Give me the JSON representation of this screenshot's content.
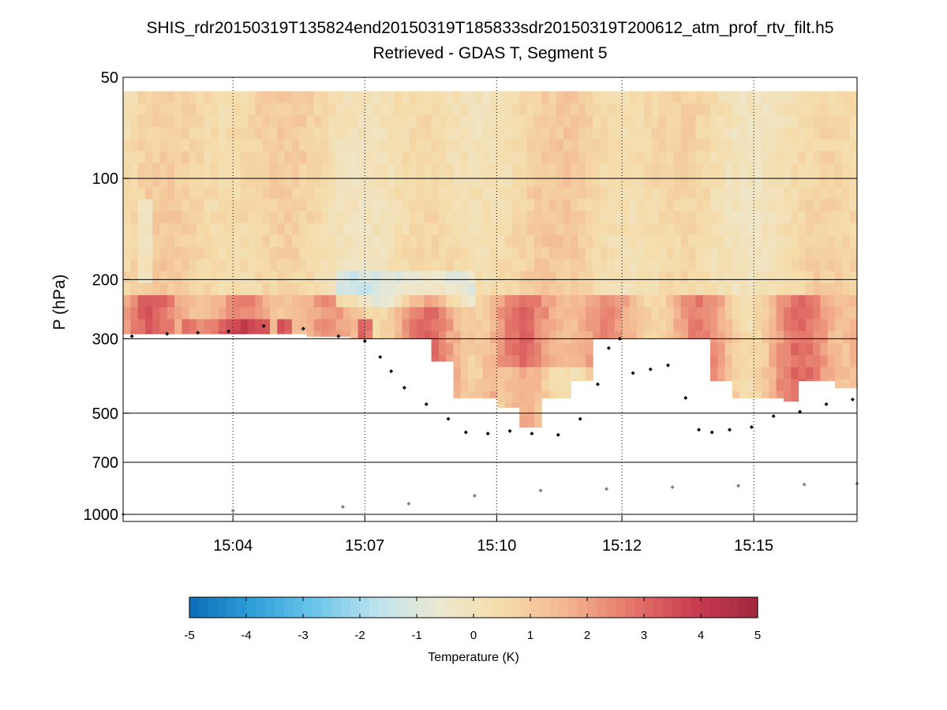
{
  "chart_data": {
    "type": "heatmap",
    "title": "SHIS_rdr20150319T135824end20150319T185833sdr20150319T200612_atm_prof_rtv_filt.h5",
    "subtitle": "Retrieved - GDAS T, Segment 5",
    "xlabel": "",
    "ylabel": "P (hPa)",
    "yscale": "log",
    "yreversed": true,
    "ylim": [
      50,
      1050
    ],
    "yticks": [
      50,
      100,
      200,
      300,
      500,
      700,
      1000
    ],
    "yticklabels": [
      "50",
      "100",
      "200",
      "300",
      "500",
      "700",
      "1000"
    ],
    "xlim_minutes": [
      60.5,
      77.2
    ],
    "xticks_minutes": [
      63.0,
      66.0,
      69.0,
      71.85,
      74.85
    ],
    "xticklabels": [
      "15:04",
      "15:07",
      "15:10",
      "15:12",
      "15:15"
    ],
    "grid": true,
    "colorbar": {
      "label": "Temperature (K)",
      "range": [
        -5,
        5
      ],
      "ticks": [
        -5,
        -4,
        -3,
        -2,
        -1,
        0,
        1,
        2,
        3,
        4,
        5
      ],
      "ticklabels": [
        "-5",
        "-4",
        "-3",
        "-2",
        "-1",
        "0",
        "1",
        "2",
        "3",
        "4",
        "5"
      ],
      "colormap": [
        "#0b6db6",
        "#2e9fd8",
        "#6cc6ea",
        "#bfe4ef",
        "#eee8cf",
        "#f5dba8",
        "#f3b48f",
        "#e4766a",
        "#c93c4f",
        "#a1283f"
      ]
    },
    "cloud_top_series": {
      "name": "cloud top pressure",
      "color": "#000000",
      "x_minutes": [
        60.7,
        61.5,
        62.2,
        62.9,
        63.7,
        64.6,
        65.4,
        66.0,
        66.35,
        66.6,
        66.9,
        67.4,
        67.9,
        68.3,
        68.8,
        69.3,
        69.8,
        70.4,
        70.9,
        71.3,
        71.55,
        71.8,
        72.1,
        72.5,
        72.9,
        73.3,
        73.6,
        73.9,
        74.3,
        74.8,
        75.3,
        75.9,
        76.5,
        77.1
      ],
      "p_hPa": [
        295,
        290,
        288,
        285,
        275,
        280,
        295,
        305,
        340,
        375,
        420,
        470,
        520,
        570,
        575,
        565,
        575,
        580,
        520,
        410,
        320,
        300,
        380,
        370,
        360,
        450,
        560,
        570,
        560,
        550,
        510,
        495,
        470,
        455
      ]
    },
    "surface_series": {
      "name": "surface pressure",
      "color": "#808080",
      "x_minutes": [
        60.5,
        63.0,
        65.5,
        67.0,
        68.5,
        70.0,
        71.5,
        73.0,
        74.5,
        76.0,
        77.2
      ],
      "p_hPa": [
        1000,
        975,
        950,
        930,
        880,
        850,
        840,
        830,
        822,
        815,
        810
      ]
    },
    "field": {
      "top_p_hPa": [
        55,
        55,
        55,
        55,
        55,
        55,
        55,
        55,
        55,
        55,
        55,
        55,
        55,
        55,
        55,
        55,
        55,
        55,
        55,
        55,
        55,
        55,
        55,
        55,
        55,
        55,
        55,
        55,
        55,
        55,
        55,
        55,
        55,
        55,
        55,
        55,
        55,
        55,
        55,
        55,
        55,
        55,
        55,
        55,
        55,
        55,
        55,
        55,
        55,
        55,
        55,
        55,
        55,
        55,
        55,
        55,
        55,
        55,
        55,
        55,
        55,
        55,
        55,
        55,
        55,
        55,
        55,
        55,
        55,
        55,
        55,
        55,
        55,
        55,
        55,
        55,
        55,
        55,
        55,
        55,
        55,
        55,
        55,
        55,
        55,
        55,
        55,
        55,
        55,
        55,
        55,
        55,
        55,
        55,
        55,
        55,
        55,
        55,
        55,
        55
      ],
      "bottom_p_hPa": [
        290,
        290,
        290,
        290,
        290,
        290,
        290,
        290,
        290,
        290,
        290,
        290,
        290,
        290,
        290,
        290,
        290,
        290,
        290,
        290,
        290,
        290,
        290,
        290,
        290,
        295,
        295,
        295,
        295,
        295,
        295,
        300,
        300,
        300,
        300,
        300,
        300,
        300,
        300,
        300,
        300,
        300,
        350,
        350,
        350,
        450,
        450,
        450,
        450,
        450,
        450,
        480,
        480,
        480,
        550,
        550,
        550,
        450,
        450,
        450,
        450,
        400,
        400,
        400,
        300,
        300,
        300,
        300,
        300,
        300,
        300,
        300,
        300,
        300,
        300,
        300,
        300,
        300,
        300,
        300,
        400,
        400,
        400,
        450,
        450,
        450,
        450,
        450,
        450,
        450,
        460,
        460,
        400,
        400,
        400,
        400,
        400,
        420,
        420,
        420
      ]
    }
  }
}
